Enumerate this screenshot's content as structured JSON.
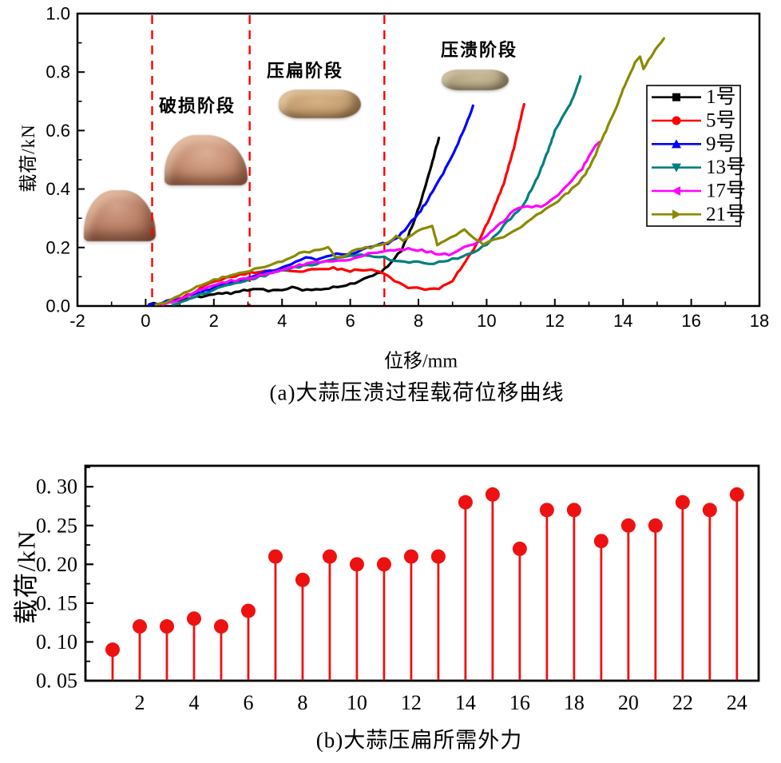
{
  "figure": {
    "background": "#ffffff",
    "photos": [
      {
        "name": "garlic-clove-intact",
        "stage": "初始"
      },
      {
        "name": "garlic-clove-damaged",
        "stage": "破损"
      },
      {
        "name": "garlic-clove-flattened",
        "stage": "压扁"
      },
      {
        "name": "garlic-clove-crushed",
        "stage": "压溃"
      }
    ]
  },
  "chart_data": [
    {
      "type": "line",
      "title": "(a)大蒜压溃过程载荷位移曲线",
      "xlabel": "位移/mm",
      "ylabel": "载荷/kN",
      "xlim": [
        -2,
        18
      ],
      "ylim": [
        0,
        1.0
      ],
      "xticks": [
        -2,
        0,
        2,
        4,
        6,
        8,
        10,
        12,
        14,
        16,
        18
      ],
      "x_minor_step": 1,
      "yticks": [
        0.0,
        0.2,
        0.4,
        0.6,
        0.8,
        1.0
      ],
      "ytick_labels": [
        "0.0",
        "0.2",
        "0.4",
        "0.6",
        "0.8",
        "1.0"
      ],
      "y_minor_step": 0.1,
      "grid": false,
      "legend_position": "upper-right",
      "phase_boundary_lines_x": [
        0.19,
        3.05,
        7.0
      ],
      "phase_line_color": "#ff0000",
      "phase_line_style": "dashed",
      "annotations": [
        {
          "text": "破损阶段",
          "x": 1.52,
          "y": 0.69
        },
        {
          "text": "压扁阶段",
          "x": 4.69,
          "y": 0.81
        },
        {
          "text": "压溃阶段",
          "x": 9.8,
          "y": 0.88
        }
      ],
      "series": [
        {
          "name": "1号",
          "color": "#000000",
          "marker": "square",
          "points": [
            [
              0.1,
              0.005
            ],
            [
              0.5,
              0.01
            ],
            [
              1.0,
              0.02
            ],
            [
              1.5,
              0.03
            ],
            [
              2.0,
              0.04
            ],
            [
              2.5,
              0.045
            ],
            [
              3.0,
              0.055
            ],
            [
              3.3,
              0.06
            ],
            [
              3.6,
              0.05
            ],
            [
              4.0,
              0.055
            ],
            [
              4.3,
              0.065
            ],
            [
              4.6,
              0.055
            ],
            [
              5.0,
              0.055
            ],
            [
              5.5,
              0.065
            ],
            [
              6.0,
              0.075
            ],
            [
              6.4,
              0.09
            ],
            [
              6.8,
              0.11
            ],
            [
              7.0,
              0.125
            ],
            [
              7.2,
              0.15
            ],
            [
              7.5,
              0.19
            ],
            [
              7.7,
              0.24
            ],
            [
              7.9,
              0.3
            ],
            [
              8.1,
              0.37
            ],
            [
              8.3,
              0.45
            ],
            [
              8.45,
              0.51
            ],
            [
              8.6,
              0.575
            ]
          ]
        },
        {
          "name": "5号",
          "color": "#ff0000",
          "marker": "circle",
          "points": [
            [
              0.4,
              0.005
            ],
            [
              0.8,
              0.015
            ],
            [
              1.2,
              0.035
            ],
            [
              1.6,
              0.06
            ],
            [
              2.0,
              0.085
            ],
            [
              2.5,
              0.1
            ],
            [
              3.05,
              0.115
            ],
            [
              3.5,
              0.12
            ],
            [
              4.0,
              0.125
            ],
            [
              4.5,
              0.12
            ],
            [
              5.0,
              0.125
            ],
            [
              5.5,
              0.13
            ],
            [
              6.0,
              0.12
            ],
            [
              6.5,
              0.125
            ],
            [
              7.0,
              0.11
            ],
            [
              7.3,
              0.085
            ],
            [
              7.7,
              0.065
            ],
            [
              8.2,
              0.055
            ],
            [
              8.6,
              0.06
            ],
            [
              9.0,
              0.085
            ],
            [
              9.3,
              0.14
            ],
            [
              9.7,
              0.21
            ],
            [
              10.1,
              0.3
            ],
            [
              10.5,
              0.42
            ],
            [
              10.8,
              0.54
            ],
            [
              11.0,
              0.64
            ],
            [
              11.1,
              0.69
            ]
          ]
        },
        {
          "name": "9号",
          "color": "#0000ff",
          "marker": "triangle-up",
          "points": [
            [
              0.1,
              0.005
            ],
            [
              0.5,
              0.012
            ],
            [
              1.0,
              0.025
            ],
            [
              1.5,
              0.045
            ],
            [
              2.0,
              0.06
            ],
            [
              2.5,
              0.08
            ],
            [
              3.05,
              0.1
            ],
            [
              3.5,
              0.115
            ],
            [
              4.0,
              0.13
            ],
            [
              4.4,
              0.15
            ],
            [
              4.7,
              0.165
            ],
            [
              5.0,
              0.16
            ],
            [
              5.3,
              0.17
            ],
            [
              5.6,
              0.18
            ],
            [
              5.9,
              0.175
            ],
            [
              6.2,
              0.185
            ],
            [
              6.5,
              0.2
            ],
            [
              6.8,
              0.21
            ],
            [
              7.1,
              0.215
            ],
            [
              7.4,
              0.235
            ],
            [
              7.6,
              0.26
            ],
            [
              7.8,
              0.29
            ],
            [
              8.0,
              0.315
            ],
            [
              8.2,
              0.35
            ],
            [
              8.5,
              0.41
            ],
            [
              8.8,
              0.47
            ],
            [
              9.1,
              0.54
            ],
            [
              9.4,
              0.62
            ],
            [
              9.6,
              0.685
            ]
          ]
        },
        {
          "name": "13号",
          "color": "#007f7f",
          "marker": "triangle-down",
          "points": [
            [
              0.8,
              0.005
            ],
            [
              1.2,
              0.02
            ],
            [
              1.6,
              0.04
            ],
            [
              2.0,
              0.055
            ],
            [
              2.5,
              0.075
            ],
            [
              3.05,
              0.09
            ],
            [
              3.5,
              0.105
            ],
            [
              4.0,
              0.12
            ],
            [
              4.5,
              0.135
            ],
            [
              5.0,
              0.145
            ],
            [
              5.5,
              0.16
            ],
            [
              6.0,
              0.17
            ],
            [
              6.3,
              0.175
            ],
            [
              6.7,
              0.17
            ],
            [
              7.0,
              0.165
            ],
            [
              7.3,
              0.155
            ],
            [
              7.6,
              0.15
            ],
            [
              8.0,
              0.15
            ],
            [
              8.3,
              0.145
            ],
            [
              8.6,
              0.15
            ],
            [
              9.0,
              0.16
            ],
            [
              9.3,
              0.17
            ],
            [
              9.65,
              0.185
            ],
            [
              10.0,
              0.21
            ],
            [
              10.4,
              0.26
            ],
            [
              10.7,
              0.3
            ],
            [
              11.05,
              0.34
            ],
            [
              11.5,
              0.44
            ],
            [
              11.8,
              0.53
            ],
            [
              12.0,
              0.6
            ],
            [
              12.2,
              0.64
            ],
            [
              12.45,
              0.69
            ],
            [
              12.6,
              0.73
            ],
            [
              12.75,
              0.785
            ]
          ]
        },
        {
          "name": "17号",
          "color": "#ff00ff",
          "marker": "triangle-left",
          "points": [
            [
              0.5,
              0.005
            ],
            [
              0.9,
              0.015
            ],
            [
              1.3,
              0.04
            ],
            [
              1.7,
              0.06
            ],
            [
              2.1,
              0.075
            ],
            [
              2.5,
              0.085
            ],
            [
              3.05,
              0.095
            ],
            [
              3.5,
              0.11
            ],
            [
              4.0,
              0.125
            ],
            [
              4.5,
              0.14
            ],
            [
              5.0,
              0.15
            ],
            [
              5.5,
              0.155
            ],
            [
              6.0,
              0.16
            ],
            [
              6.4,
              0.175
            ],
            [
              6.9,
              0.185
            ],
            [
              7.3,
              0.19
            ],
            [
              7.7,
              0.195
            ],
            [
              8.1,
              0.19
            ],
            [
              8.5,
              0.18
            ],
            [
              8.9,
              0.175
            ],
            [
              9.2,
              0.19
            ],
            [
              9.5,
              0.21
            ],
            [
              9.8,
              0.22
            ],
            [
              10.1,
              0.25
            ],
            [
              10.5,
              0.29
            ],
            [
              10.8,
              0.33
            ],
            [
              11.2,
              0.34
            ],
            [
              11.6,
              0.34
            ],
            [
              11.9,
              0.36
            ],
            [
              12.2,
              0.39
            ],
            [
              12.5,
              0.43
            ],
            [
              12.8,
              0.47
            ],
            [
              13.0,
              0.51
            ],
            [
              13.2,
              0.55
            ],
            [
              13.3,
              0.56
            ]
          ]
        },
        {
          "name": "21号",
          "color": "#8a8a00",
          "marker": "triangle-right",
          "points": [
            [
              0.3,
              0.005
            ],
            [
              0.6,
              0.012
            ],
            [
              1.0,
              0.035
            ],
            [
              1.5,
              0.065
            ],
            [
              2.0,
              0.09
            ],
            [
              2.5,
              0.105
            ],
            [
              3.05,
              0.12
            ],
            [
              3.5,
              0.135
            ],
            [
              4.0,
              0.155
            ],
            [
              4.5,
              0.18
            ],
            [
              4.8,
              0.185
            ],
            [
              5.1,
              0.195
            ],
            [
              5.35,
              0.2
            ],
            [
              5.6,
              0.165
            ],
            [
              5.9,
              0.175
            ],
            [
              6.2,
              0.195
            ],
            [
              6.6,
              0.2
            ],
            [
              7.0,
              0.21
            ],
            [
              7.35,
              0.24
            ],
            [
              7.55,
              0.22
            ],
            [
              7.8,
              0.245
            ],
            [
              8.1,
              0.26
            ],
            [
              8.4,
              0.275
            ],
            [
              8.55,
              0.21
            ],
            [
              8.8,
              0.225
            ],
            [
              9.1,
              0.245
            ],
            [
              9.35,
              0.26
            ],
            [
              9.6,
              0.235
            ],
            [
              9.9,
              0.21
            ],
            [
              10.2,
              0.225
            ],
            [
              10.5,
              0.235
            ],
            [
              10.9,
              0.26
            ],
            [
              11.2,
              0.29
            ],
            [
              11.6,
              0.32
            ],
            [
              12.0,
              0.35
            ],
            [
              12.3,
              0.38
            ],
            [
              12.6,
              0.41
            ],
            [
              12.9,
              0.45
            ],
            [
              13.2,
              0.52
            ],
            [
              13.5,
              0.6
            ],
            [
              13.8,
              0.68
            ],
            [
              14.1,
              0.77
            ],
            [
              14.35,
              0.83
            ],
            [
              14.5,
              0.85
            ],
            [
              14.6,
              0.81
            ],
            [
              14.75,
              0.84
            ],
            [
              14.95,
              0.88
            ],
            [
              15.2,
              0.915
            ]
          ]
        }
      ]
    },
    {
      "type": "scatter",
      "style": "stem",
      "title": "(b)大蒜压扁所需外力",
      "xlabel": "",
      "ylabel": "载荷/kN",
      "x": [
        1,
        2,
        3,
        4,
        5,
        6,
        7,
        8,
        9,
        10,
        11,
        12,
        13,
        14,
        15,
        16,
        17,
        18,
        19,
        20,
        21,
        22,
        23,
        24
      ],
      "values": [
        0.09,
        0.12,
        0.12,
        0.13,
        0.12,
        0.14,
        0.21,
        0.18,
        0.21,
        0.2,
        0.2,
        0.21,
        0.21,
        0.28,
        0.29,
        0.22,
        0.27,
        0.27,
        0.23,
        0.25,
        0.25,
        0.28,
        0.27,
        0.29
      ],
      "color": "#ee1111",
      "baseline": 0.05,
      "xlim": [
        0,
        24.8
      ],
      "ylim": [
        0.05,
        0.327
      ],
      "xticks": [
        2,
        4,
        6,
        8,
        10,
        12,
        14,
        16,
        18,
        20,
        22,
        24
      ],
      "yticks": [
        0.05,
        0.1,
        0.15,
        0.2,
        0.25,
        0.3
      ],
      "ytick_labels": [
        "0. 05",
        "0. 10",
        "0. 15",
        "0. 20",
        "0. 25",
        "0. 30"
      ],
      "y_minor_step": 0.025,
      "grid": false,
      "legend_position": "none"
    }
  ]
}
